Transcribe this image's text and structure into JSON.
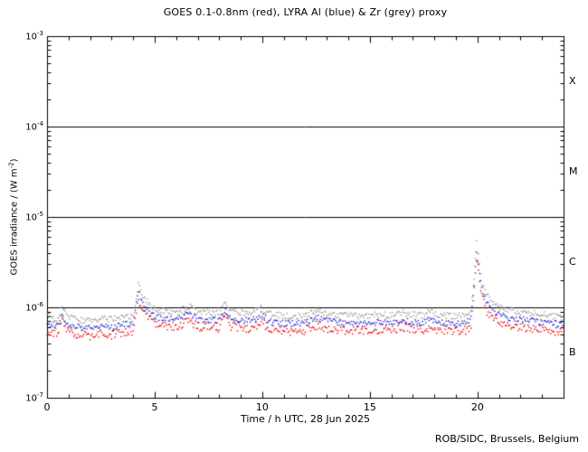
{
  "chart_data": {
    "type": "scatter",
    "title": "GOES 0.1-0.8nm (red), LYRA Al (blue) & Zr (grey) proxy",
    "xlabel": "Time / h UTC, 28 Jun 2025",
    "ylabel": {
      "prefix": "GOES irradiance / (W m",
      "sup": "-2",
      "suffix": ")"
    },
    "credit": "ROB/SIDC, Brussels, Belgium",
    "xlim": [
      0,
      24
    ],
    "ylim": [
      1e-07,
      0.001
    ],
    "ylog": true,
    "x_major_ticks": [
      0,
      5,
      10,
      15,
      20
    ],
    "x_minor_step": 1,
    "y_decade_exponents": [
      -3,
      -4,
      -5,
      -6,
      -7
    ],
    "boundary_lines": [
      1e-06,
      1e-05,
      0.0001
    ],
    "flare_classes": [
      {
        "label": "X",
        "band": [
          0.0001,
          0.001
        ]
      },
      {
        "label": "M",
        "band": [
          1e-05,
          0.0001
        ]
      },
      {
        "label": "C",
        "band": [
          1e-06,
          1e-05
        ]
      },
      {
        "label": "B",
        "band": [
          1e-07,
          1e-06
        ]
      }
    ],
    "x": [
      0,
      0.5,
      0.7,
      0.9,
      1.5,
      2,
      2.5,
      3,
      3.5,
      4,
      4.15,
      4.25,
      4.5,
      5,
      5.5,
      6,
      6.5,
      6.7,
      7,
      7.5,
      8,
      8.3,
      8.5,
      9,
      9.5,
      10,
      10.2,
      10.5,
      11,
      11.5,
      12,
      12.5,
      13,
      13.5,
      14,
      14.5,
      15,
      15.5,
      16,
      16.5,
      17,
      17.5,
      17.8,
      18,
      18.5,
      19,
      19.5,
      19.7,
      19.85,
      19.95,
      20.05,
      20.2,
      20.4,
      20.7,
      21,
      21.5,
      22,
      22.5,
      23,
      23.5,
      24
    ],
    "series": [
      {
        "name": "GOES 0.1-0.8nm",
        "color": "#e80000",
        "jitter": 0.05,
        "values": [
          5.5e-07,
          5.2e-07,
          7.2e-07,
          5.6e-07,
          5e-07,
          4.9e-07,
          5.3e-07,
          5e-07,
          5.3e-07,
          5.5e-07,
          9e-07,
          1.25e-06,
          8.5e-07,
          6.5e-07,
          6.3e-07,
          6.1e-07,
          6.8e-07,
          7e-07,
          6.1e-07,
          6.2e-07,
          5.9e-07,
          8e-07,
          6.3e-07,
          6e-07,
          5.9e-07,
          7e-07,
          6e-07,
          5.7e-07,
          5.5e-07,
          5.5e-07,
          5.6e-07,
          6.4e-07,
          5.9e-07,
          5.7e-07,
          5.6e-07,
          5.5e-07,
          5.6e-07,
          5.8e-07,
          5.6e-07,
          6.1e-07,
          5.7e-07,
          5.6e-07,
          6.3e-07,
          5.8e-07,
          5.6e-07,
          5.5e-07,
          5.6e-07,
          6.5e-07,
          1.5e-06,
          3.5e-06,
          2.5e-06,
          1.3e-06,
          9.5e-07,
          7.8e-07,
          7e-07,
          6.4e-07,
          6.1e-07,
          5.9e-07,
          5.7e-07,
          5.5e-07,
          5.4e-07
        ]
      },
      {
        "name": "LYRA Al proxy",
        "color": "#2020cc",
        "jitter": 0.035,
        "values": [
          6.6e-07,
          6.2e-07,
          8.6e-07,
          6.7e-07,
          6e-07,
          5.9e-07,
          6.4e-07,
          6e-07,
          6.4e-07,
          6.6e-07,
          1.08e-06,
          1.5e-06,
          1.02e-06,
          7.8e-07,
          7.6e-07,
          7.3e-07,
          8.2e-07,
          8.4e-07,
          7.3e-07,
          7.4e-07,
          7.1e-07,
          9.6e-07,
          7.6e-07,
          7.2e-07,
          7.1e-07,
          8.4e-07,
          7.2e-07,
          6.8e-07,
          6.6e-07,
          6.6e-07,
          6.7e-07,
          7.7e-07,
          7.1e-07,
          6.8e-07,
          6.7e-07,
          6.6e-07,
          6.7e-07,
          7e-07,
          6.7e-07,
          7.3e-07,
          6.8e-07,
          6.7e-07,
          7.6e-07,
          7e-07,
          6.7e-07,
          6.6e-07,
          6.7e-07,
          7.8e-07,
          1.8e-06,
          4.2e-06,
          3e-06,
          1.56e-06,
          1.14e-06,
          9.4e-07,
          8.4e-07,
          7.7e-07,
          7.3e-07,
          7.1e-07,
          6.8e-07,
          6.6e-07,
          6.5e-07
        ]
      },
      {
        "name": "LYRA Zr proxy",
        "color": "#9a9a9a",
        "jitter": 0.035,
        "values": [
          8e-07,
          7.5e-07,
          1.04e-06,
          8.1e-07,
          7.3e-07,
          7.1e-07,
          7.7e-07,
          7.3e-07,
          7.7e-07,
          8e-07,
          1.31e-06,
          1.81e-06,
          1.23e-06,
          9.4e-07,
          9.1e-07,
          8.8e-07,
          9.9e-07,
          1.02e-06,
          8.8e-07,
          9e-07,
          8.6e-07,
          1.16e-06,
          9.1e-07,
          8.7e-07,
          8.6e-07,
          1.02e-06,
          8.7e-07,
          8.3e-07,
          8e-07,
          8e-07,
          8.1e-07,
          9.3e-07,
          8.6e-07,
          8.3e-07,
          8.1e-07,
          8e-07,
          8.1e-07,
          8.4e-07,
          8.1e-07,
          8.8e-07,
          8.3e-07,
          8.1e-07,
          9.1e-07,
          8.4e-07,
          8.1e-07,
          8e-07,
          8.1e-07,
          9.4e-07,
          2.18e-06,
          5.05e-06,
          3.63e-06,
          1.89e-06,
          1.38e-06,
          1.13e-06,
          1.02e-06,
          9.3e-07,
          8.8e-07,
          8.6e-07,
          8.3e-07,
          8e-07,
          7.8e-07
        ]
      }
    ]
  }
}
